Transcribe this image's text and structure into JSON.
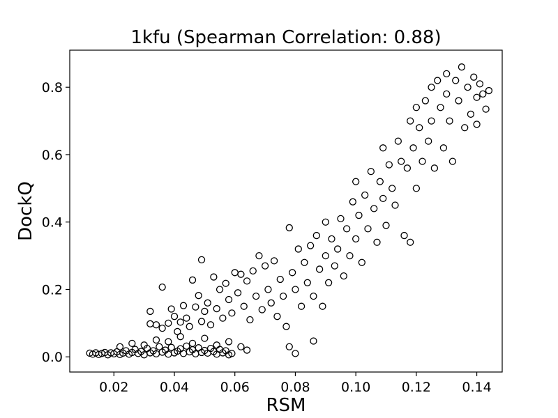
{
  "chart_data": {
    "type": "scatter",
    "title": "1kfu (Spearman Correlation: 0.88)",
    "xlabel": "RSM",
    "ylabel": "DockQ",
    "xlim": [
      0.0054,
      0.1484
    ],
    "ylim": [
      -0.045,
      0.91
    ],
    "xticks": [
      0.02,
      0.04,
      0.06,
      0.08,
      0.1,
      0.12,
      0.14
    ],
    "xtick_labels": [
      "0.02",
      "0.04",
      "0.06",
      "0.08",
      "0.10",
      "0.12",
      "0.14"
    ],
    "yticks": [
      0.0,
      0.2,
      0.4,
      0.6,
      0.8
    ],
    "ytick_labels": [
      "0.0",
      "0.2",
      "0.4",
      "0.6",
      "0.8"
    ],
    "grid": false,
    "marker": "hollow-circle",
    "marker_color": "#000000",
    "series": [
      {
        "points": [
          [
            0.012,
            0.011
          ],
          [
            0.013,
            0.008
          ],
          [
            0.014,
            0.012
          ],
          [
            0.015,
            0.007
          ],
          [
            0.016,
            0.01
          ],
          [
            0.017,
            0.013
          ],
          [
            0.018,
            0.006
          ],
          [
            0.019,
            0.012
          ],
          [
            0.02,
            0.009
          ],
          [
            0.021,
            0.015
          ],
          [
            0.022,
            0.007
          ],
          [
            0.023,
            0.011
          ],
          [
            0.024,
            0.018
          ],
          [
            0.025,
            0.008
          ],
          [
            0.026,
            0.013
          ],
          [
            0.027,
            0.022
          ],
          [
            0.028,
            0.01
          ],
          [
            0.029,
            0.016
          ],
          [
            0.03,
            0.006
          ],
          [
            0.031,
            0.025
          ],
          [
            0.032,
            0.012
          ],
          [
            0.033,
            0.018
          ],
          [
            0.034,
            0.009
          ],
          [
            0.035,
            0.03
          ],
          [
            0.036,
            0.014
          ],
          [
            0.037,
            0.02
          ],
          [
            0.038,
            0.008
          ],
          [
            0.039,
            0.028
          ],
          [
            0.04,
            0.012
          ],
          [
            0.041,
            0.017
          ],
          [
            0.042,
            0.024
          ],
          [
            0.043,
            0.01
          ],
          [
            0.044,
            0.032
          ],
          [
            0.045,
            0.015
          ],
          [
            0.046,
            0.021
          ],
          [
            0.047,
            0.009
          ],
          [
            0.048,
            0.027
          ],
          [
            0.049,
            0.013
          ],
          [
            0.05,
            0.019
          ],
          [
            0.051,
            0.011
          ],
          [
            0.052,
            0.025
          ],
          [
            0.053,
            0.016
          ],
          [
            0.054,
            0.008
          ],
          [
            0.055,
            0.022
          ],
          [
            0.056,
            0.012
          ],
          [
            0.057,
            0.018
          ],
          [
            0.058,
            0.006
          ],
          [
            0.059,
            0.01
          ],
          [
            0.022,
            0.03
          ],
          [
            0.026,
            0.04
          ],
          [
            0.03,
            0.035
          ],
          [
            0.034,
            0.05
          ],
          [
            0.038,
            0.045
          ],
          [
            0.042,
            0.06
          ],
          [
            0.046,
            0.04
          ],
          [
            0.05,
            0.055
          ],
          [
            0.054,
            0.035
          ],
          [
            0.058,
            0.045
          ],
          [
            0.062,
            0.03
          ],
          [
            0.064,
            0.02
          ],
          [
            0.032,
            0.135
          ],
          [
            0.032,
            0.098
          ],
          [
            0.034,
            0.095
          ],
          [
            0.036,
            0.207
          ],
          [
            0.036,
            0.085
          ],
          [
            0.038,
            0.1
          ],
          [
            0.039,
            0.142
          ],
          [
            0.04,
            0.12
          ],
          [
            0.041,
            0.075
          ],
          [
            0.042,
            0.103
          ],
          [
            0.043,
            0.152
          ],
          [
            0.044,
            0.115
          ],
          [
            0.045,
            0.09
          ],
          [
            0.046,
            0.228
          ],
          [
            0.047,
            0.148
          ],
          [
            0.048,
            0.182
          ],
          [
            0.049,
            0.288
          ],
          [
            0.049,
            0.105
          ],
          [
            0.05,
            0.135
          ],
          [
            0.051,
            0.16
          ],
          [
            0.052,
            0.095
          ],
          [
            0.053,
            0.237
          ],
          [
            0.054,
            0.143
          ],
          [
            0.055,
            0.2
          ],
          [
            0.056,
            0.115
          ],
          [
            0.057,
            0.218
          ],
          [
            0.058,
            0.17
          ],
          [
            0.059,
            0.13
          ],
          [
            0.06,
            0.25
          ],
          [
            0.061,
            0.19
          ],
          [
            0.062,
            0.245
          ],
          [
            0.063,
            0.15
          ],
          [
            0.064,
            0.225
          ],
          [
            0.065,
            0.11
          ],
          [
            0.066,
            0.255
          ],
          [
            0.067,
            0.18
          ],
          [
            0.068,
            0.3
          ],
          [
            0.069,
            0.14
          ],
          [
            0.07,
            0.27
          ],
          [
            0.071,
            0.2
          ],
          [
            0.072,
            0.16
          ],
          [
            0.073,
            0.285
          ],
          [
            0.074,
            0.12
          ],
          [
            0.075,
            0.23
          ],
          [
            0.076,
            0.18
          ],
          [
            0.077,
            0.09
          ],
          [
            0.078,
            0.383
          ],
          [
            0.078,
            0.03
          ],
          [
            0.079,
            0.25
          ],
          [
            0.08,
            0.2
          ],
          [
            0.08,
            0.01
          ],
          [
            0.081,
            0.32
          ],
          [
            0.082,
            0.15
          ],
          [
            0.083,
            0.28
          ],
          [
            0.084,
            0.22
          ],
          [
            0.085,
            0.33
          ],
          [
            0.086,
            0.18
          ],
          [
            0.086,
            0.047
          ],
          [
            0.087,
            0.36
          ],
          [
            0.088,
            0.26
          ],
          [
            0.089,
            0.15
          ],
          [
            0.09,
            0.4
          ],
          [
            0.09,
            0.3
          ],
          [
            0.091,
            0.22
          ],
          [
            0.092,
            0.35
          ],
          [
            0.093,
            0.27
          ],
          [
            0.094,
            0.32
          ],
          [
            0.095,
            0.41
          ],
          [
            0.096,
            0.24
          ],
          [
            0.097,
            0.38
          ],
          [
            0.098,
            0.3
          ],
          [
            0.099,
            0.46
          ],
          [
            0.1,
            0.35
          ],
          [
            0.1,
            0.52
          ],
          [
            0.101,
            0.42
          ],
          [
            0.102,
            0.28
          ],
          [
            0.103,
            0.48
          ],
          [
            0.104,
            0.38
          ],
          [
            0.105,
            0.55
          ],
          [
            0.106,
            0.44
          ],
          [
            0.107,
            0.34
          ],
          [
            0.108,
            0.52
          ],
          [
            0.109,
            0.62
          ],
          [
            0.109,
            0.47
          ],
          [
            0.11,
            0.39
          ],
          [
            0.111,
            0.57
          ],
          [
            0.112,
            0.5
          ],
          [
            0.113,
            0.45
          ],
          [
            0.114,
            0.64
          ],
          [
            0.115,
            0.58
          ],
          [
            0.116,
            0.36
          ],
          [
            0.117,
            0.56
          ],
          [
            0.118,
            0.7
          ],
          [
            0.118,
            0.34
          ],
          [
            0.119,
            0.62
          ],
          [
            0.12,
            0.74
          ],
          [
            0.12,
            0.5
          ],
          [
            0.121,
            0.68
          ],
          [
            0.122,
            0.58
          ],
          [
            0.123,
            0.76
          ],
          [
            0.124,
            0.64
          ],
          [
            0.125,
            0.8
          ],
          [
            0.125,
            0.7
          ],
          [
            0.126,
            0.56
          ],
          [
            0.127,
            0.82
          ],
          [
            0.128,
            0.74
          ],
          [
            0.129,
            0.62
          ],
          [
            0.13,
            0.84
          ],
          [
            0.13,
            0.78
          ],
          [
            0.131,
            0.7
          ],
          [
            0.132,
            0.58
          ],
          [
            0.133,
            0.82
          ],
          [
            0.134,
            0.76
          ],
          [
            0.135,
            0.86
          ],
          [
            0.136,
            0.68
          ],
          [
            0.137,
            0.8
          ],
          [
            0.138,
            0.72
          ],
          [
            0.139,
            0.83
          ],
          [
            0.14,
            0.77
          ],
          [
            0.14,
            0.69
          ],
          [
            0.141,
            0.81
          ],
          [
            0.142,
            0.78
          ],
          [
            0.143,
            0.735
          ],
          [
            0.144,
            0.79
          ]
        ]
      }
    ]
  }
}
